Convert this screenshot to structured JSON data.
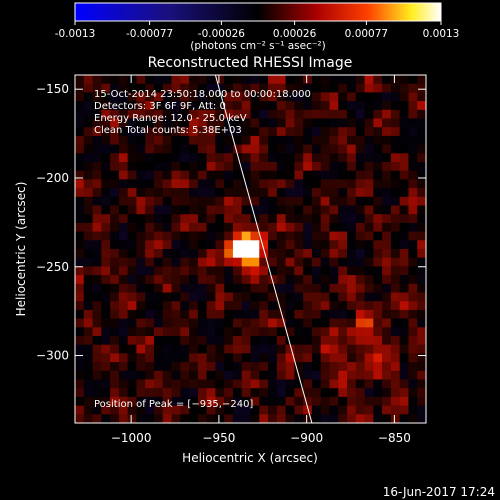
{
  "colorbar": {
    "ticks": [
      "-0.0013",
      "-0.00077",
      "-0.00026",
      "0.00026",
      "0.00077",
      "0.0013"
    ],
    "tick_values": [
      -0.0013,
      -0.00077,
      -0.00026,
      0.00026,
      0.00077,
      0.0013
    ],
    "range": [
      -0.0013,
      0.0013
    ],
    "unit_label": "(photons cm⁻² s⁻¹ asec⁻²)"
  },
  "chart_data": {
    "type": "heatmap",
    "title": "Reconstructed RHESSI Image",
    "xlabel": "Heliocentric X (arcsec)",
    "ylabel": "Heliocentric Y (arcsec)",
    "xlim": [
      -1032,
      -832
    ],
    "ylim": [
      -338,
      -142
    ],
    "xticks": [
      -1000,
      -950,
      -900,
      -850
    ],
    "xtick_labels": [
      "−1000",
      "−950",
      "−900",
      "−850"
    ],
    "yticks": [
      -150,
      -200,
      -250,
      -300
    ],
    "ytick_labels": [
      "−150",
      "−200",
      "−250",
      "−300"
    ],
    "peak": {
      "x": -935,
      "y": -240
    },
    "limb_line": [
      [
        -952,
        -142
      ],
      [
        -897,
        -338
      ]
    ],
    "annotations": [
      "15-Oct-2014 23:50:18.000 to 00:00:18.000",
      "Detectors: 3F 6F 9F, Att: 0",
      "Energy Range: 12.0 - 25.0 keV",
      "Clean    Total counts: 5.38E+03"
    ],
    "peak_label": "Position of Peak = [−935,−240]",
    "grid": false,
    "colormap": "blue-black-red-yellow-white"
  },
  "footer": {
    "date": "16-Jun-2017 17:24"
  }
}
